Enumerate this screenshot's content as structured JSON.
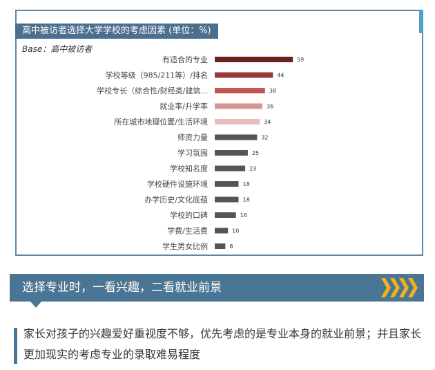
{
  "chart_data": {
    "type": "bar",
    "orientation": "horizontal",
    "title": "高中被访者选择大学学校的考虑因素 (单位：%)",
    "subtitle": "Base：高中被访者",
    "categories": [
      "有适合的专业",
      "学校等级（985/211等）/排名",
      "学校专长（综合性/财经类/建筑...",
      "就业率/升学率",
      "所在城市地理位置/生活环境",
      "师资力量",
      "学习氛围",
      "学校知名度",
      "学校硬件设施环境",
      "办学历史/文化底蕴",
      "学校的口碑",
      "学费/生活费",
      "学生男女比例"
    ],
    "values": [
      59,
      44,
      38,
      36,
      34,
      32,
      25,
      23,
      18,
      18,
      16,
      10,
      8
    ],
    "bar_colors": [
      "#6b1f1f",
      "#9e3737",
      "#c45555",
      "#d69595",
      "#e6bcbc",
      "#555555",
      "#555555",
      "#555555",
      "#555555",
      "#555555",
      "#555555",
      "#555555",
      "#555555"
    ],
    "xlim": [
      0,
      60
    ],
    "grid": false,
    "legend": "none"
  },
  "banner": {
    "title": "选择专业时，一看兴趣，二看就业前景",
    "chevron_color": "#f0b31a"
  },
  "quote": {
    "text": "家长对孩子的兴趣爱好重视度不够，优先考虑的是专业本身的就业前景；并且家长更加现实的考虑专业的录取难易程度"
  }
}
